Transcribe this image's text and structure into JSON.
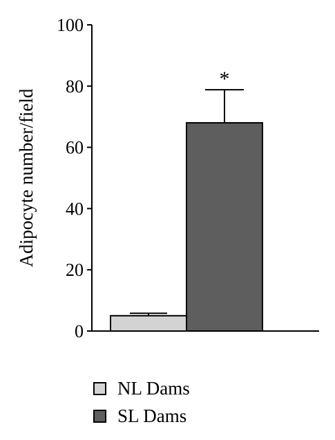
{
  "chart_data": {
    "type": "bar",
    "categories": [
      "NL Dams",
      "SL Dams"
    ],
    "values": [
      5,
      68
    ],
    "error_bars": [
      0.8,
      10.8
    ],
    "ylabel": "Adipocyte number/field",
    "xlabel": "",
    "ylim": [
      0,
      100
    ],
    "yticks": [
      "0",
      "20",
      "40",
      "60",
      "80",
      "100"
    ],
    "annotations": [
      {
        "category": "SL Dams",
        "text": "*"
      }
    ],
    "legend": {
      "placement": "bottom",
      "entries": [
        {
          "label": "NL Dams",
          "color": "#d3d3d3"
        },
        {
          "label": "SL Dams",
          "color": "#5e5e5e"
        }
      ]
    },
    "grid": false
  }
}
